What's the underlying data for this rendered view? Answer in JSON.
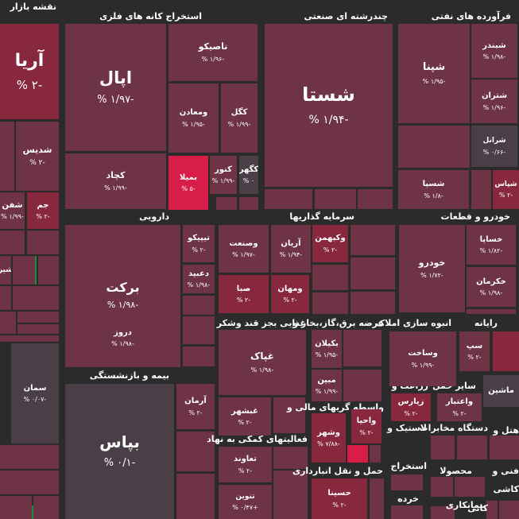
{
  "header": {
    "title": "نقشه بازار"
  },
  "colors": {
    "background": "#2b2b2b",
    "slight_negative": "#6e3344",
    "negative": "#88283f",
    "strong_negative": "#b01f3e",
    "max_negative": "#d81e48",
    "neutral": "#4a3f47",
    "positive": "#1f8a3f"
  },
  "chart_data": {
    "type": "treemap",
    "sectors": [
      {
        "name": "نقشه بازار"
      },
      {
        "name": "استخراج کانه های فلزی"
      },
      {
        "name": "چندرشته ای صنعتی"
      },
      {
        "name": "فرآورده های نفتی"
      },
      {
        "name": "دارویی"
      },
      {
        "name": "سرمایه گذاریها"
      },
      {
        "name": "خودرو و قطعات"
      },
      {
        "name": "بیمه و بازنشستگی"
      },
      {
        "name": "غذایی بجز قند وشکر"
      },
      {
        "name": "عرضه برق،گاز،بخار و"
      },
      {
        "name": "انبوه سازی املاک"
      },
      {
        "name": "رایانه"
      },
      {
        "name": "فعالیتهای کمکی به نهاد"
      },
      {
        "name": "واسطه گریهای مالی و"
      },
      {
        "name": "زراعت و"
      },
      {
        "name": "سایر حمل"
      },
      {
        "name": "حمل و نقل انبارداری"
      },
      {
        "name": "لاستیک و"
      },
      {
        "name": "دستگاه مخابرات"
      },
      {
        "name": "هتل و"
      },
      {
        "name": "محصولا"
      },
      {
        "name": "فنی و"
      },
      {
        "name": "کاشی"
      },
      {
        "name": "بیمانکاری"
      },
      {
        "name": "کانی"
      },
      {
        "name": "استخراج"
      },
      {
        "name": "خرده"
      }
    ],
    "tiles": [
      {
        "symbol": "آریا",
        "change": "-۲ %"
      },
      {
        "symbol": "شدیس",
        "change": "-۲ %"
      },
      {
        "symbol": "شفن",
        "change": "-۱/۹۹ %"
      },
      {
        "symbol": "جم",
        "change": "-۲ %"
      },
      {
        "symbol": "شیر",
        "change": ""
      },
      {
        "symbol": "سمان",
        "change": "-۰/۰۷ %"
      },
      {
        "symbol": "اپال",
        "change": "-۱/۹۷ %"
      },
      {
        "symbol": "کچاد",
        "change": "-۱/۹۹ %"
      },
      {
        "symbol": "تاصیکو",
        "change": "-۱/۹۶ %"
      },
      {
        "symbol": "ومعادن",
        "change": "-۱/۹۵ %"
      },
      {
        "symbol": "کگل",
        "change": "-۱/۹۹ %"
      },
      {
        "symbol": "بمیلا",
        "change": "-۵ %"
      },
      {
        "symbol": "کنور",
        "change": "-۱/۹۹ %"
      },
      {
        "symbol": "کگهر",
        "change": "۰ %"
      },
      {
        "symbol": "شستا",
        "change": "-۱/۹۴ %"
      },
      {
        "symbol": "شپنا",
        "change": "-۱/۹۵ %"
      },
      {
        "symbol": "شبندر",
        "change": "-۱/۹۸ %"
      },
      {
        "symbol": "شتران",
        "change": "-۱/۹۶ %"
      },
      {
        "symbol": "شرانل",
        "change": "-۰/۶۶ %"
      },
      {
        "symbol": "شسپا",
        "change": "-۱/۸ %"
      },
      {
        "symbol": "شپاس",
        "change": "-۲ %"
      },
      {
        "symbol": "برکت",
        "change": "-۱/۹۸ %"
      },
      {
        "symbol": "تیپیکو",
        "change": "-۲ %"
      },
      {
        "symbol": "دعبید",
        "change": "-۱/۹۸ %"
      },
      {
        "symbol": "دروز",
        "change": "-۱/۹۸ %"
      },
      {
        "symbol": "وصنعت",
        "change": "-۱/۹۷ %"
      },
      {
        "symbol": "آریان",
        "change": "-۱/۹۴ %"
      },
      {
        "symbol": "وکبهمن",
        "change": "-۲ %"
      },
      {
        "symbol": "صبا",
        "change": "-۲ %"
      },
      {
        "symbol": "ومهان",
        "change": "-۲ %"
      },
      {
        "symbol": "خودرو",
        "change": "-۱/۷۲ %"
      },
      {
        "symbol": "خساپا",
        "change": "-۱/۸۲ %"
      },
      {
        "symbol": "خکرمان",
        "change": "-۱/۹۸ %"
      },
      {
        "symbol": "بپاس",
        "change": "-۰/۱ %"
      },
      {
        "symbol": "آرمان",
        "change": "-۲ %"
      },
      {
        "symbol": "غپاک",
        "change": "-۱/۹۸ %"
      },
      {
        "symbol": "غبشهر",
        "change": "-۲ %"
      },
      {
        "symbol": "بکیلان",
        "change": "-۱/۹۵ %"
      },
      {
        "symbol": "مبین",
        "change": "-۱/۹۹ %"
      },
      {
        "symbol": "وساخت",
        "change": "-۱/۹۹ %"
      },
      {
        "symbol": "سپ",
        "change": "-۲ %"
      },
      {
        "symbol": "ماشین",
        "change": ""
      },
      {
        "symbol": "واعتبار",
        "change": "-۲ %"
      },
      {
        "symbol": "زیارس",
        "change": "-۲ %"
      },
      {
        "symbol": "واحیا",
        "change": "-۲ %"
      },
      {
        "symbol": "وشهر",
        "change": "-۷/۸۸ %"
      },
      {
        "symbol": "تعاوند",
        "change": "-۲ %"
      },
      {
        "symbol": "تنوین",
        "change": "+۰/۴۷ %"
      },
      {
        "symbol": "حسینا",
        "change": "-۲ %"
      }
    ]
  }
}
